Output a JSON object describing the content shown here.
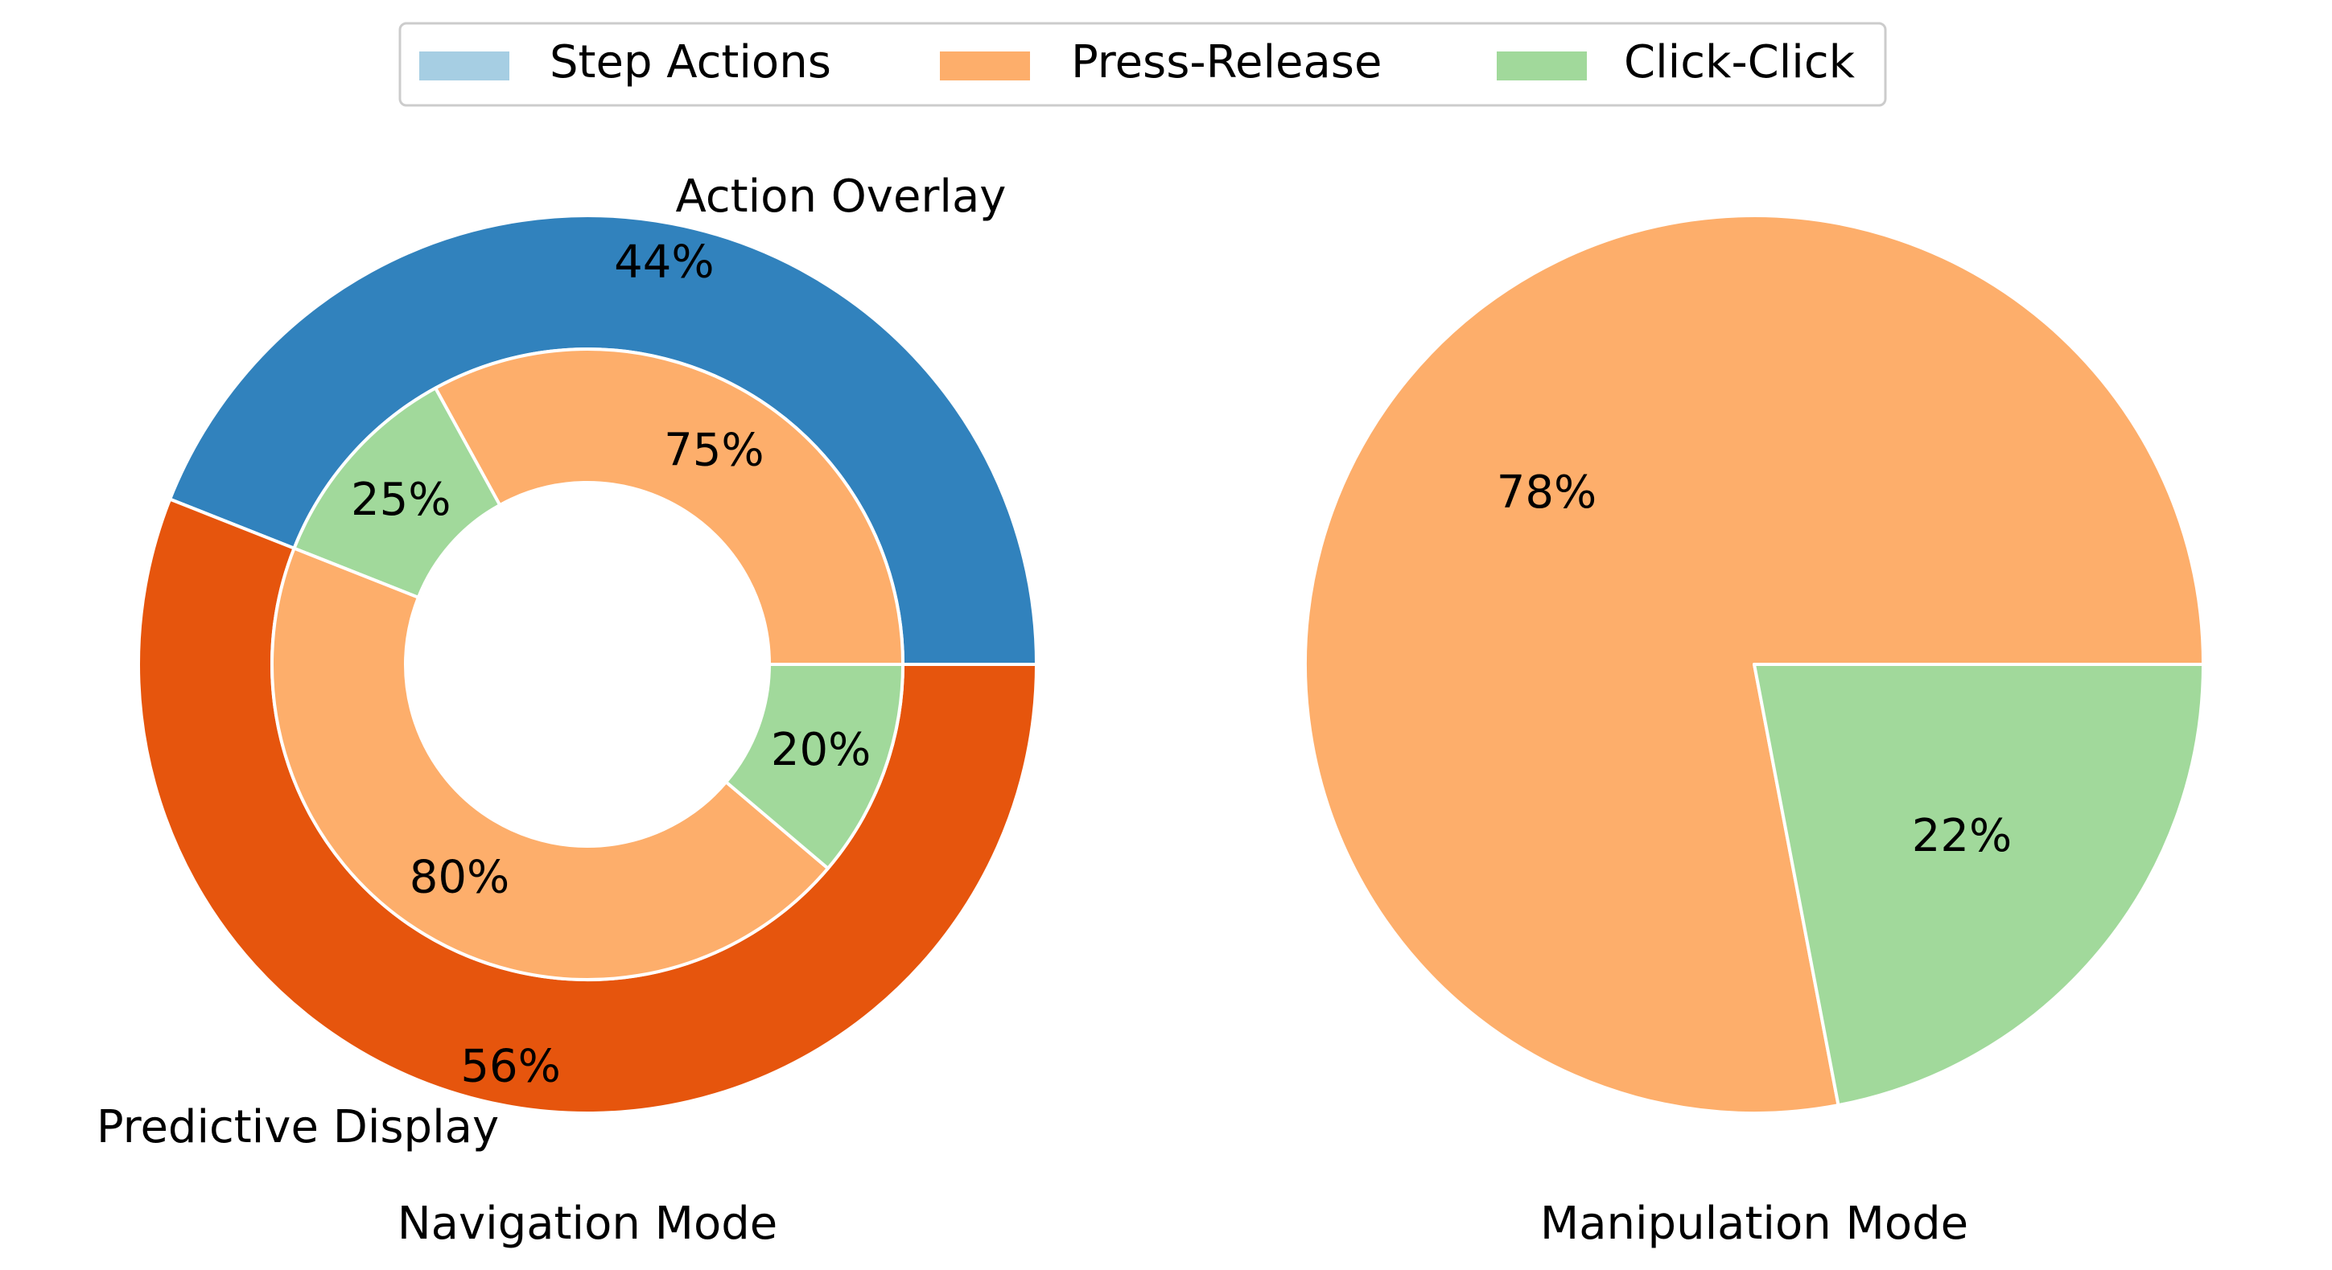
{
  "legend": {
    "placement": "top-center",
    "items": [
      {
        "label": "Step Actions",
        "color": "#a6cee3"
      },
      {
        "label": "Press-Release",
        "color": "#fdae6b"
      },
      {
        "label": "Click-Click",
        "color": "#a1d99b"
      }
    ]
  },
  "chart_data": [
    {
      "type": "pie",
      "subtype": "nested-donut",
      "title": "Navigation Mode",
      "outer": {
        "slices": [
          {
            "label": "Action Overlay",
            "value": 44,
            "value_label": "44%",
            "color": "#3182bd"
          },
          {
            "label": "Predictive Display",
            "value": 56,
            "value_label": "56%",
            "color": "#e6550d"
          }
        ]
      },
      "inner": {
        "groups": [
          {
            "parent": "Action Overlay",
            "slices": [
              {
                "series": "Press-Release",
                "value": 75,
                "value_label": "75%",
                "color": "#fdae6b"
              },
              {
                "series": "Click-Click",
                "value": 25,
                "value_label": "25%",
                "color": "#a1d99b"
              }
            ]
          },
          {
            "parent": "Predictive Display",
            "slices": [
              {
                "series": "Press-Release",
                "value": 80,
                "value_label": "80%",
                "color": "#fdae6b"
              },
              {
                "series": "Click-Click",
                "value": 20,
                "value_label": "20%",
                "color": "#a1d99b"
              }
            ]
          }
        ]
      }
    },
    {
      "type": "pie",
      "title": "Manipulation Mode",
      "slices": [
        {
          "series": "Press-Release",
          "value": 78,
          "value_label": "78%",
          "color": "#fdae6b"
        },
        {
          "series": "Click-Click",
          "value": 22,
          "value_label": "22%",
          "color": "#a1d99b"
        }
      ]
    }
  ]
}
